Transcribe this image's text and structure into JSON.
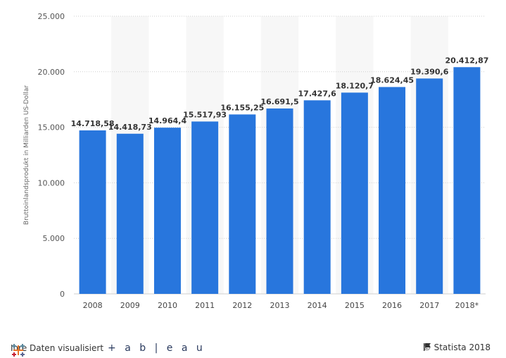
{
  "chart_data": {
    "type": "bar",
    "title": "",
    "xlabel": "",
    "ylabel": "Bruttoinlandsprodukt in Milliarden US-Dollar",
    "ylim": [
      0,
      25000
    ],
    "yticks": [
      0,
      5000,
      10000,
      15000,
      20000,
      25000
    ],
    "ytick_labels": [
      "0",
      "5.000",
      "10.000",
      "15.000",
      "20.000",
      "25.000"
    ],
    "grid": true,
    "categories": [
      "2008",
      "2009",
      "2010",
      "2011",
      "2012",
      "2013",
      "2014",
      "2015",
      "2016",
      "2017",
      "2018*"
    ],
    "values": [
      14718.58,
      14418.73,
      14964.4,
      15517.93,
      16155.25,
      16691.5,
      17427.6,
      18120.7,
      18624.45,
      19390.6,
      20412.87
    ],
    "data_labels": [
      "14.718,58",
      "14.418,73",
      "14.964,4",
      "15.517,93",
      "16.155,25",
      "16.691,5",
      "17.427,6",
      "18.120,7",
      "18.624,45",
      "19.390,6",
      "20.412,87"
    ],
    "bar_color": "#2876dd"
  },
  "footer": {
    "left_text": "Ihre Daten visualisiert",
    "tableau_logo": "+ a b | e a u",
    "copyright": "© Statista 2018",
    "flag_icon": "flag-icon"
  }
}
